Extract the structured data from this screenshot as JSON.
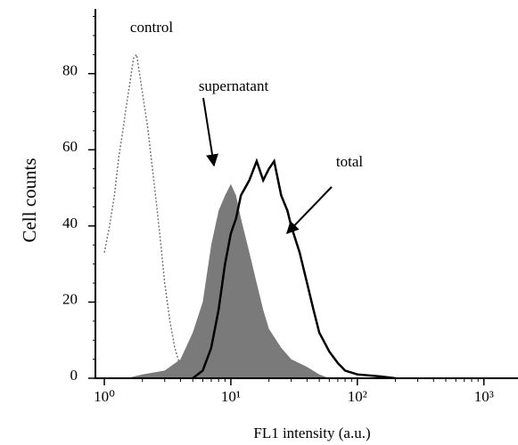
{
  "chart_data": {
    "type": "histogram-line",
    "x_label": "FL1 intensity (a.u.)",
    "y_label": "Cell counts",
    "xscale": "log",
    "xlim": [
      0.85,
      1860
    ],
    "ylim": [
      0,
      97
    ],
    "xticks": [
      {
        "value": 1,
        "label": "10⁰"
      },
      {
        "value": 10,
        "label": "10¹"
      },
      {
        "value": 100,
        "label": "10²"
      },
      {
        "value": 1000,
        "label": "10³"
      }
    ],
    "yticks": [
      0,
      20,
      40,
      60,
      80
    ],
    "annotations": [
      "control",
      "supernatant",
      "total"
    ],
    "series": [
      {
        "name": "control",
        "color": "#777777",
        "style": "dotted",
        "x": [
          1.0,
          1.1,
          1.2,
          1.3,
          1.4,
          1.5,
          1.6,
          1.7,
          1.8,
          1.9,
          2.0,
          2.2,
          2.4,
          2.6,
          2.8,
          3.0,
          3.3,
          3.6,
          4.0,
          4.5,
          5.0
        ],
        "values": [
          33,
          40,
          48,
          58,
          65,
          72,
          78,
          84,
          85,
          80,
          75,
          66,
          55,
          45,
          35,
          25,
          15,
          8,
          3,
          1,
          0
        ]
      },
      {
        "name": "supernatant",
        "color": "#7a7a7a",
        "style": "filled",
        "x": [
          1.5,
          2,
          3,
          4,
          5,
          6,
          7,
          8,
          9,
          10,
          11,
          12,
          14,
          16,
          18,
          20,
          25,
          30,
          40,
          50,
          60
        ],
        "values": [
          0,
          1,
          2,
          5,
          12,
          20,
          35,
          44,
          48,
          51,
          48,
          42,
          33,
          25,
          18,
          13,
          8,
          5,
          3,
          1,
          0
        ]
      },
      {
        "name": "total",
        "color": "#000000",
        "style": "solid",
        "x": [
          5,
          6,
          7,
          8,
          9,
          10,
          11,
          12,
          14,
          16,
          18,
          20,
          22,
          25,
          28,
          30,
          35,
          40,
          45,
          50,
          60,
          70,
          80,
          100,
          150,
          200
        ],
        "values": [
          0,
          2,
          8,
          18,
          30,
          38,
          42,
          48,
          52,
          57,
          52,
          55,
          57,
          48,
          44,
          40,
          33,
          25,
          18,
          12,
          7,
          4,
          2,
          1,
          0.5,
          0
        ]
      }
    ]
  }
}
